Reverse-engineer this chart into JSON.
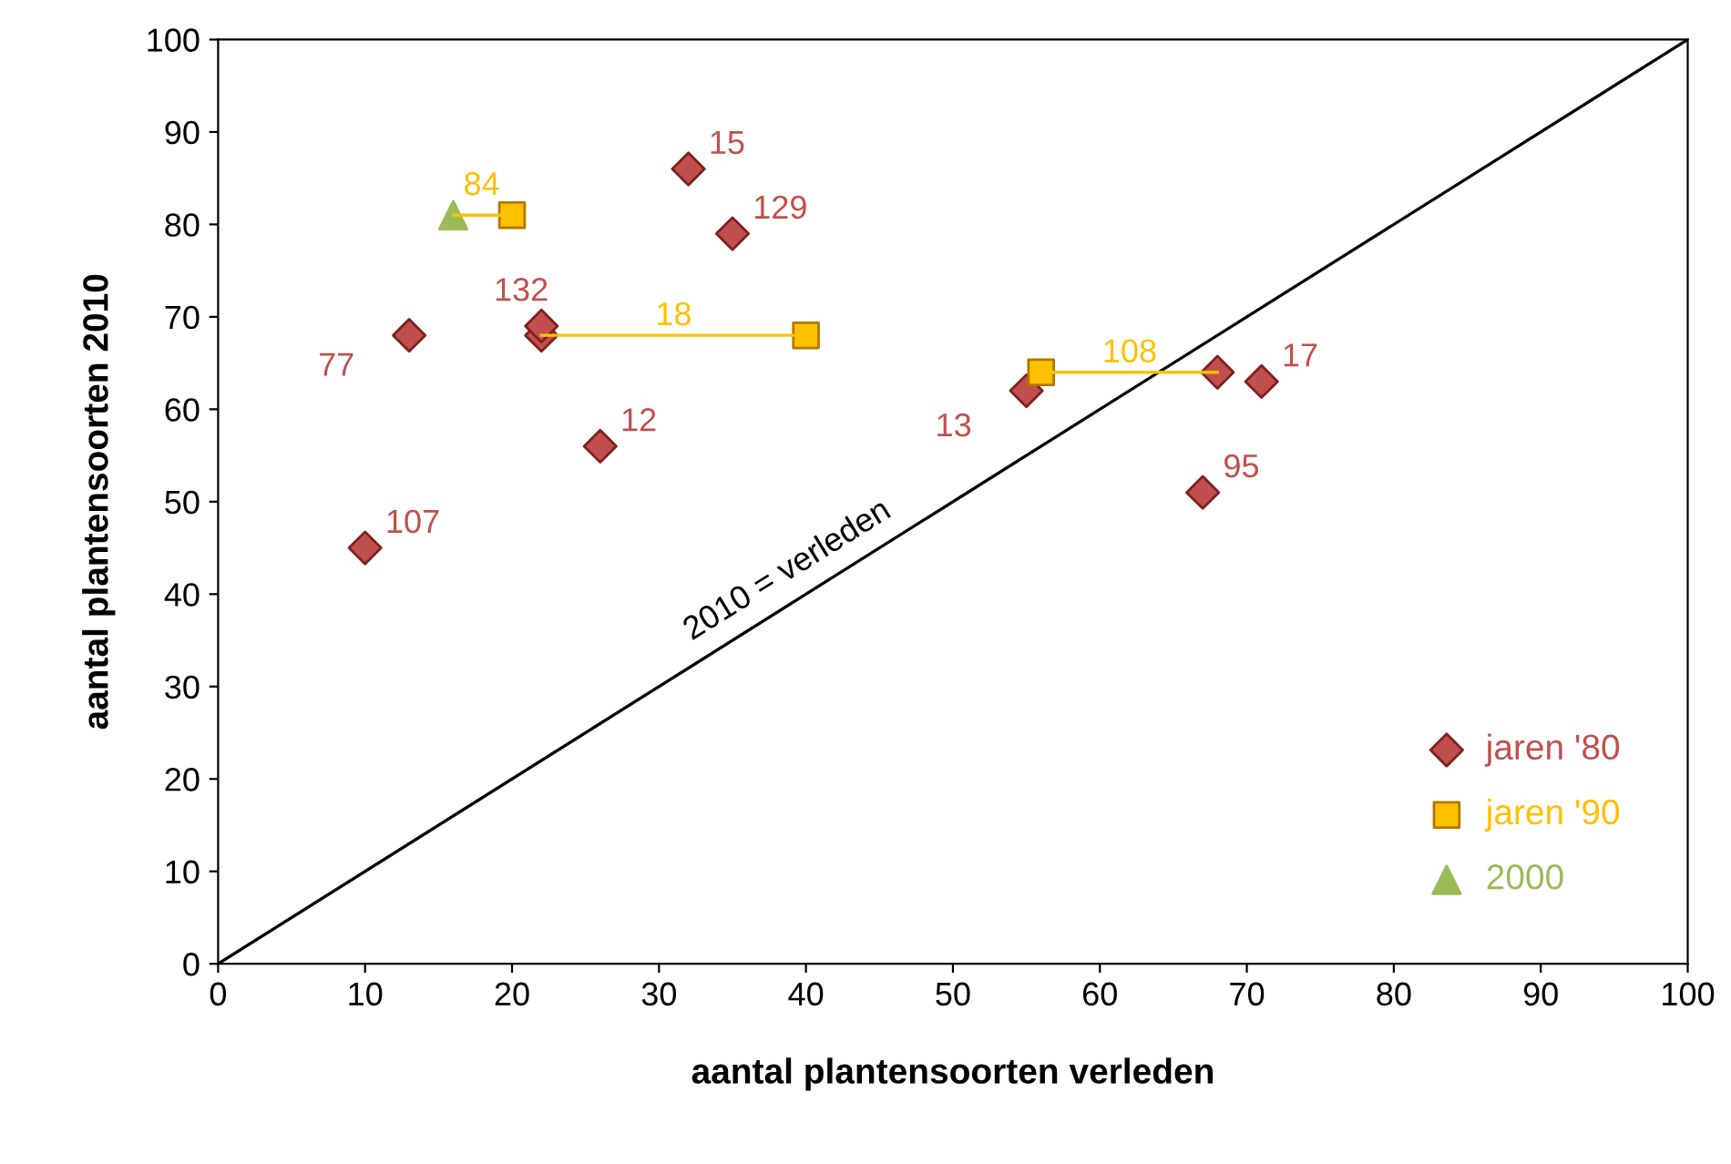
{
  "chart_data": {
    "type": "scatter",
    "xlabel": "aantal plantensoorten verleden",
    "ylabel": "aantal plantensoorten 2010",
    "xlim": [
      0,
      100
    ],
    "ylim": [
      0,
      100
    ],
    "xticks": [
      0,
      10,
      20,
      30,
      40,
      50,
      60,
      70,
      80,
      90,
      100
    ],
    "yticks": [
      0,
      10,
      20,
      30,
      40,
      50,
      60,
      70,
      80,
      90,
      100
    ],
    "grid": false,
    "legend": "bottom right",
    "annotations": [
      {
        "text": "2010 = verleden",
        "x": 40,
        "y": 40
      },
      {
        "text": "107",
        "x": 10,
        "y": 45
      },
      {
        "text": "77",
        "x": 13,
        "y": 68
      },
      {
        "text": "132",
        "x": 22,
        "y": 69
      },
      {
        "text": "12",
        "x": 26,
        "y": 56
      },
      {
        "text": "15",
        "x": 32,
        "y": 86
      },
      {
        "text": "129",
        "x": 35,
        "y": 79
      },
      {
        "text": "13",
        "x": 55,
        "y": 62
      },
      {
        "text": "17",
        "x": 71,
        "y": 63
      },
      {
        "text": "95",
        "x": 67,
        "y": 51
      },
      {
        "text": "84",
        "x": 20,
        "y": 81
      },
      {
        "text": "18",
        "x": 31,
        "y": 68
      },
      {
        "text": "108",
        "x": 56,
        "y": 64
      }
    ],
    "series": [
      {
        "type": "line",
        "color": "#000000",
        "x": [
          0,
          100
        ],
        "values": [
          0,
          100
        ]
      },
      {
        "type": "line",
        "color": "#ffc000",
        "x": [
          16,
          20
        ],
        "values": [
          81,
          81
        ]
      },
      {
        "type": "line",
        "color": "#ffc000",
        "x": [
          22,
          40
        ],
        "values": [
          68,
          68
        ]
      },
      {
        "type": "line",
        "color": "#ffc000",
        "x": [
          56,
          68
        ],
        "values": [
          64,
          64
        ]
      },
      {
        "name": "jaren '80",
        "color": "#c0504d",
        "marker": "diamond",
        "x": [
          10,
          13,
          22,
          22,
          26,
          32,
          35,
          55,
          68,
          71,
          67
        ],
        "values": [
          45,
          68,
          68,
          69,
          56,
          86,
          79,
          62,
          64,
          63,
          51
        ]
      },
      {
        "name": "jaren '90",
        "color": "#ffc000",
        "marker": "square",
        "x": [
          20,
          40,
          56
        ],
        "values": [
          81,
          68,
          64
        ]
      },
      {
        "name": "2000",
        "color": "#9bbb59",
        "marker": "triangle",
        "x": [
          16
        ],
        "values": [
          81
        ]
      }
    ]
  }
}
